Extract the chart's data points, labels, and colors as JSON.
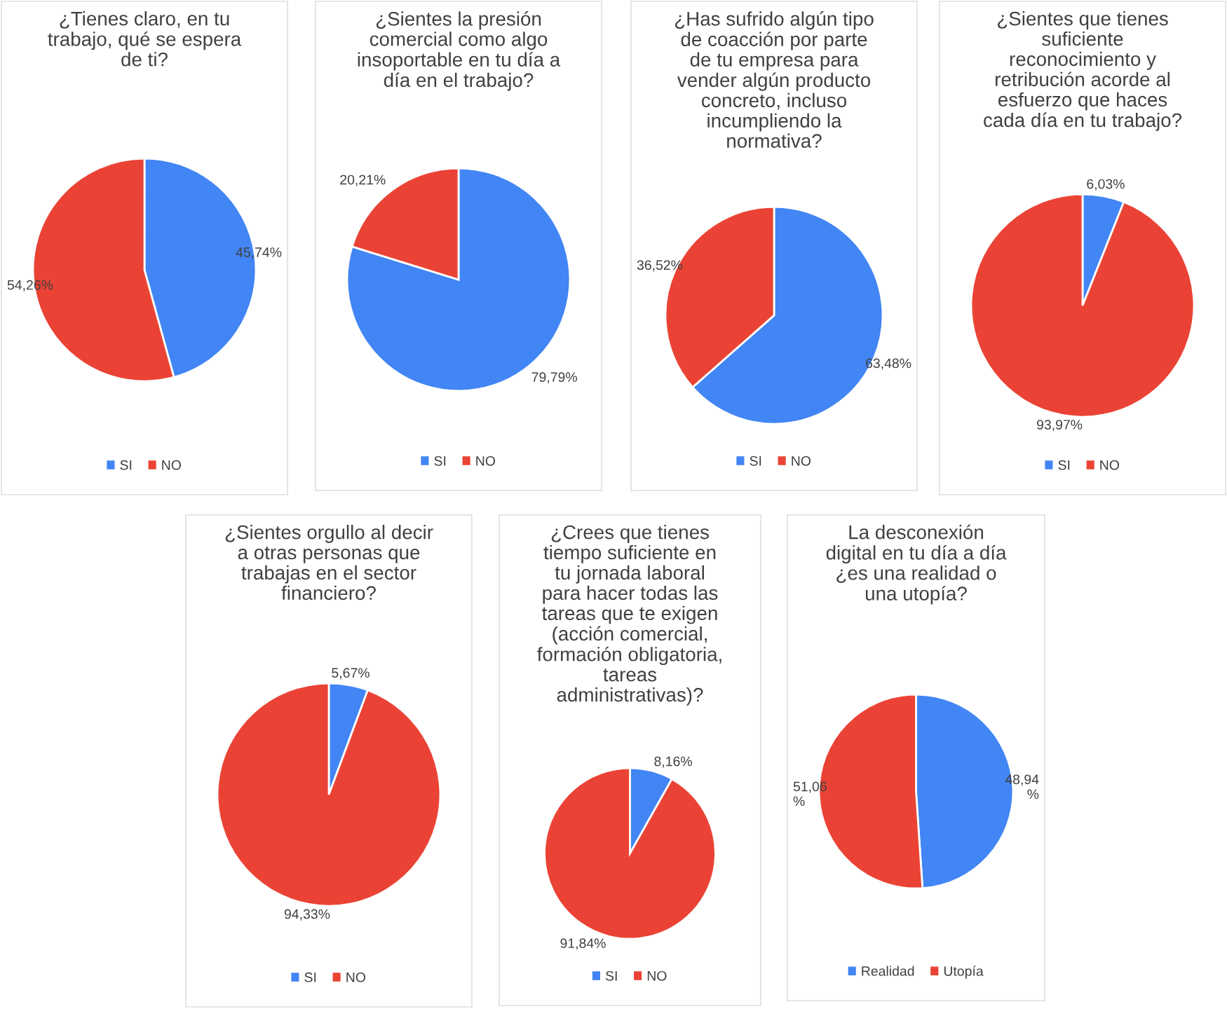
{
  "chart_data": [
    {
      "type": "pie",
      "title": "¿Tienes claro, en tu\ntrabajo, qué se espera\nde ti?",
      "categories": [
        "SI",
        "NO"
      ],
      "values": [
        45.74,
        54.26
      ],
      "colors": [
        "#4285f4",
        "#ea4335"
      ],
      "value_labels": [
        "45,74%",
        "54,26%"
      ],
      "legend": "bottom"
    },
    {
      "type": "pie",
      "title": "¿Sientes la presión\ncomercial como algo\ninsoportable en tu día a\ndía en el trabajo?",
      "categories": [
        "SI",
        "NO"
      ],
      "values": [
        79.79,
        20.21
      ],
      "colors": [
        "#4285f4",
        "#ea4335"
      ],
      "value_labels": [
        "79,79%",
        "20,21%"
      ],
      "legend": "bottom"
    },
    {
      "type": "pie",
      "title": "¿Has sufrido algún tipo\nde coacción por parte\nde tu empresa para\nvender algún producto\nconcreto, incluso\nincumpliendo la\nnormativa?",
      "categories": [
        "SI",
        "NO"
      ],
      "values": [
        63.48,
        36.52
      ],
      "colors": [
        "#4285f4",
        "#ea4335"
      ],
      "value_labels": [
        "63,48%",
        "36,52%"
      ],
      "legend": "bottom"
    },
    {
      "type": "pie",
      "title": "¿Sientes que tienes\nsuficiente\nreconocimiento y\nretribución acorde al\nesfuerzo que haces\ncada día en tu trabajo?",
      "categories": [
        "SI",
        "NO"
      ],
      "values": [
        6.03,
        93.97
      ],
      "colors": [
        "#4285f4",
        "#ea4335"
      ],
      "value_labels": [
        "6,03%",
        "93,97%"
      ],
      "legend": "bottom"
    },
    {
      "type": "pie",
      "title": "¿Sientes orgullo al decir\na otras personas que\ntrabajas en el sector\nfinanciero?",
      "categories": [
        "SI",
        "NO"
      ],
      "values": [
        5.67,
        94.33
      ],
      "colors": [
        "#4285f4",
        "#ea4335"
      ],
      "value_labels": [
        "5,67%",
        "94,33%"
      ],
      "legend": "bottom"
    },
    {
      "type": "pie",
      "title": "¿Crees que tienes\ntiempo suficiente en\ntu jornada laboral\npara hacer todas las\ntareas que te exigen\n(acción comercial,\nformación obligatoria,\ntareas\nadministrativas)?",
      "categories": [
        "SI",
        "NO"
      ],
      "values": [
        8.16,
        91.84
      ],
      "colors": [
        "#4285f4",
        "#ea4335"
      ],
      "value_labels": [
        "8,16%",
        "91,84%"
      ],
      "legend": "bottom"
    },
    {
      "type": "pie",
      "title": "La desconexión\ndigital en tu día a día\n¿es una realidad o\nuna utopía?",
      "categories": [
        "Realidad",
        "Utopía"
      ],
      "values": [
        48.94,
        51.06
      ],
      "colors": [
        "#4285f4",
        "#ea4335"
      ],
      "value_labels": [
        "48,94\n%",
        "51,06\n%"
      ],
      "legend": "bottom"
    }
  ]
}
